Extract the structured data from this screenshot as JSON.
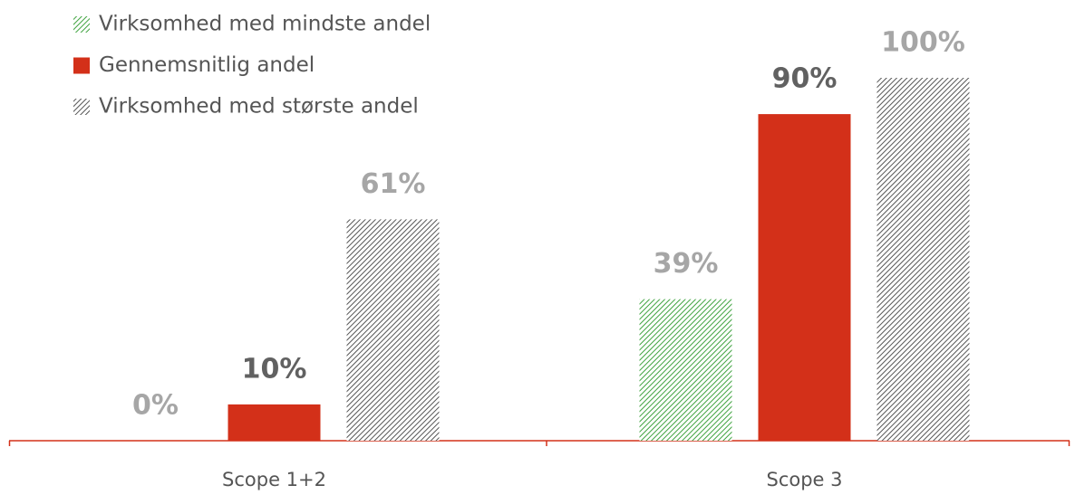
{
  "chart_data": {
    "type": "bar",
    "categories": [
      "Scope 1+2",
      "Scope 3"
    ],
    "series": [
      {
        "name": "Virksomhed med mindste andel",
        "color": "#3fa33f",
        "pattern": "hatch",
        "values": [
          0,
          39
        ],
        "value_labels": [
          "0%",
          "39%"
        ]
      },
      {
        "name": "Gennemsnitlig andel",
        "color": "#d33019",
        "values": [
          10,
          90
        ],
        "value_labels": [
          "10%",
          "90%"
        ]
      },
      {
        "name": "Virksomhed med største andel",
        "color": "#555555",
        "pattern": "hatch",
        "values": [
          61,
          100
        ],
        "value_labels": [
          "61%",
          "100%"
        ]
      }
    ]
  }
}
